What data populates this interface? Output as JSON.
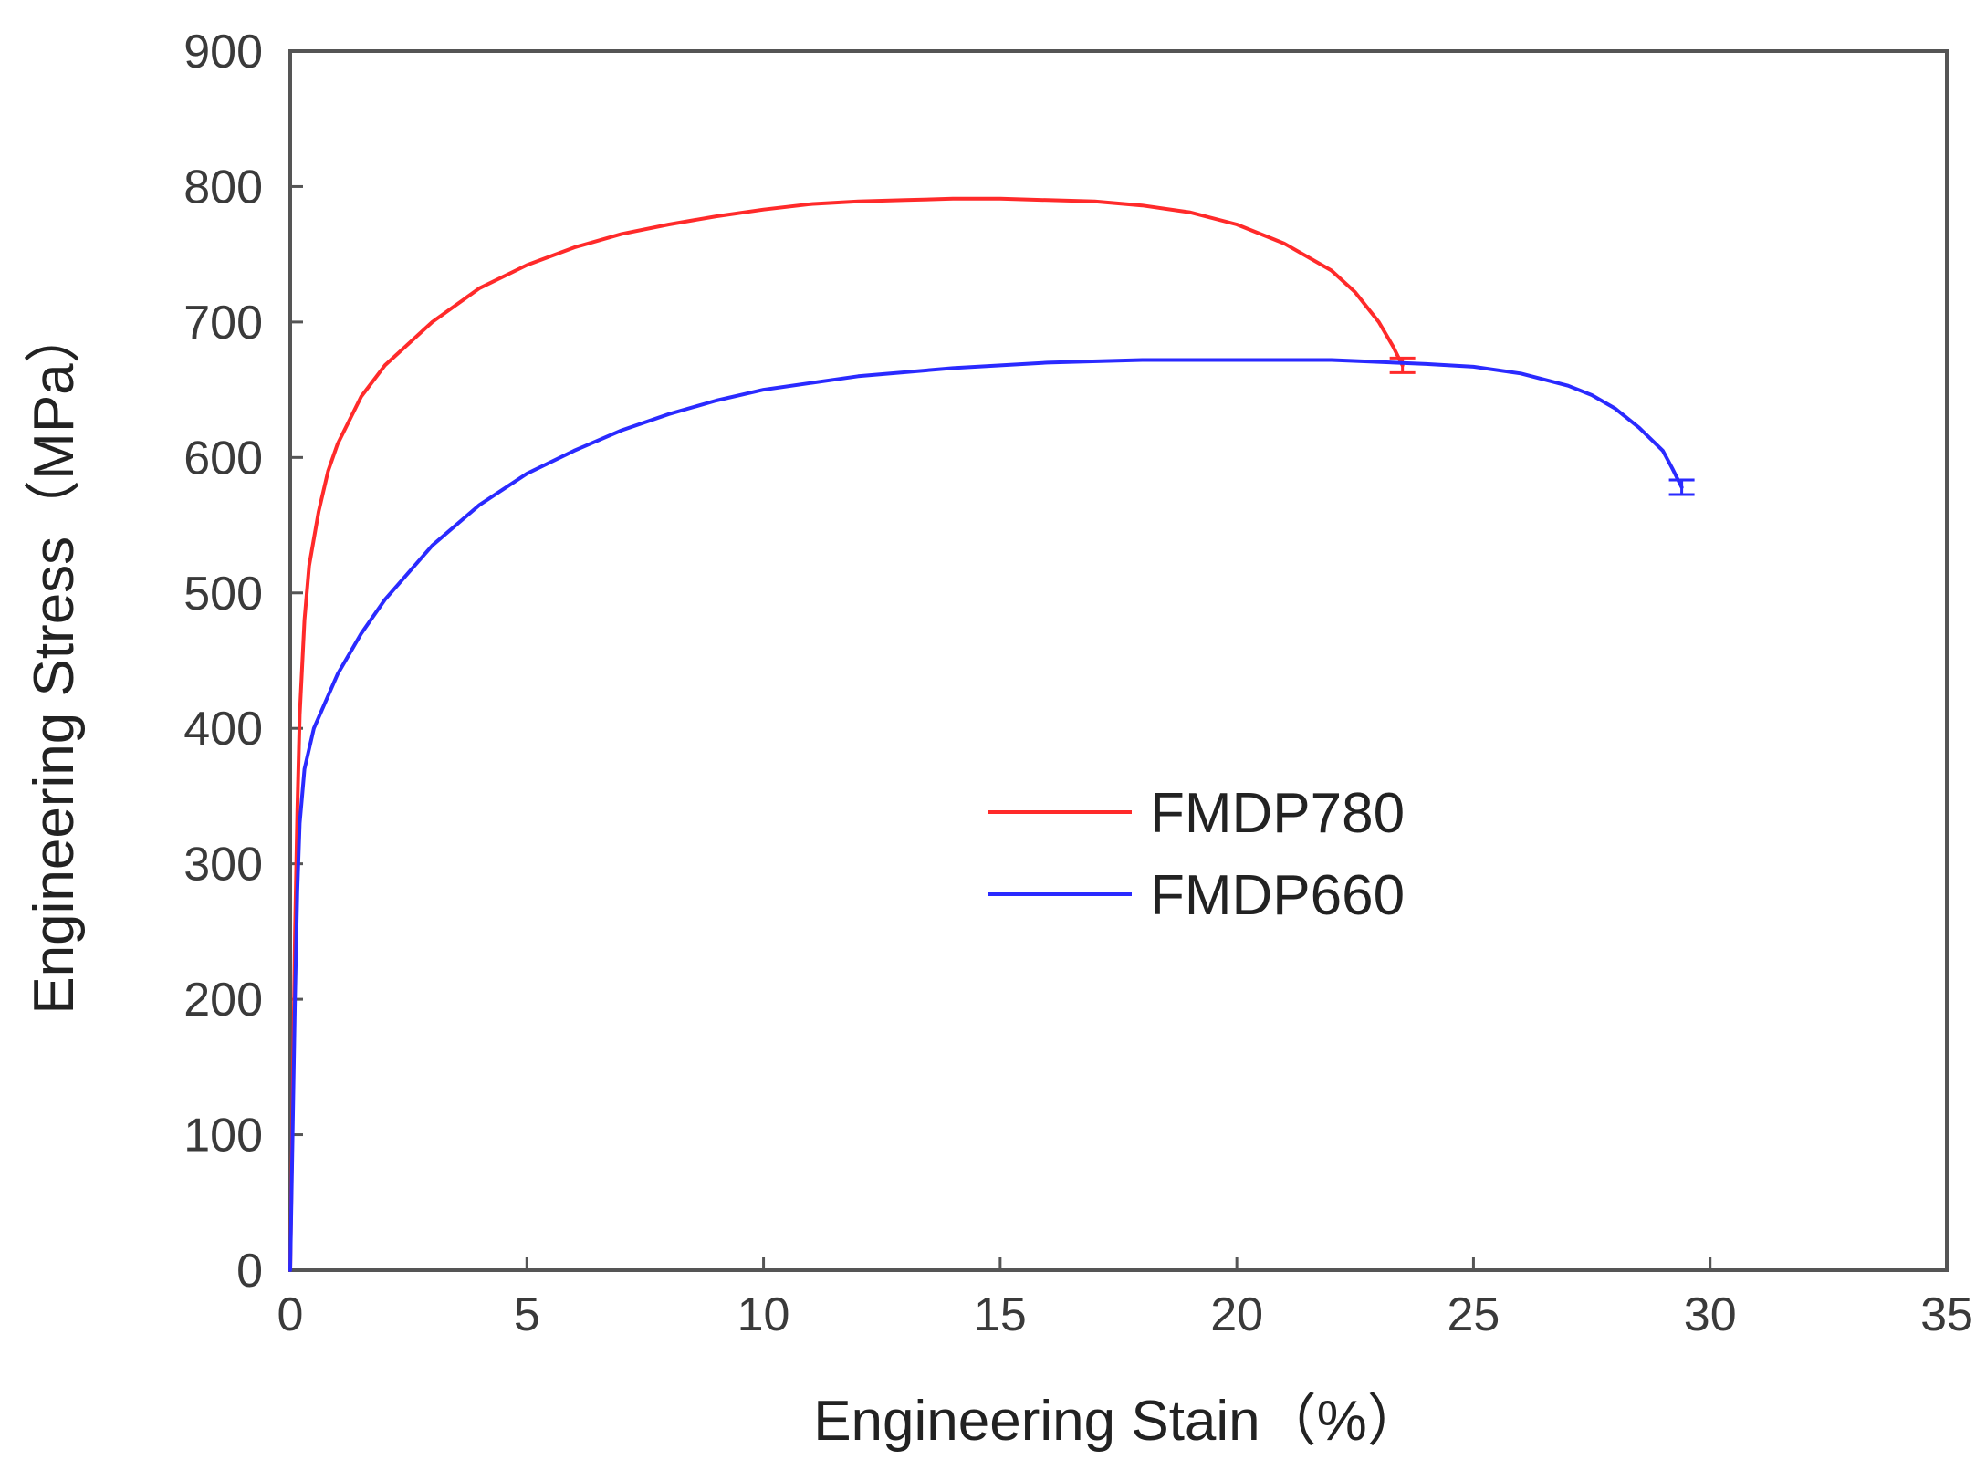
{
  "chart_data": {
    "type": "line",
    "title": "",
    "xlabel": "Engineering Stain（%）",
    "ylabel": "Engineering Stress（MPa）",
    "xlim": [
      0,
      35
    ],
    "ylim": [
      0,
      900
    ],
    "x_ticks": [
      "0",
      "5",
      "10",
      "15",
      "20",
      "25",
      "30",
      "35"
    ],
    "y_ticks": [
      "0",
      "100",
      "200",
      "300",
      "400",
      "500",
      "600",
      "700",
      "800",
      "900"
    ],
    "grid": false,
    "legend_position": "center-right",
    "series": [
      {
        "name": "FMDP780",
        "color": "#ff2a2a",
        "x": [
          0,
          0.05,
          0.1,
          0.15,
          0.2,
          0.3,
          0.4,
          0.6,
          0.8,
          1.0,
          1.5,
          2.0,
          3.0,
          4.0,
          5.0,
          6.0,
          7.0,
          8.0,
          9.0,
          10.0,
          11.0,
          12.0,
          13.0,
          14.0,
          15.0,
          16.0,
          17.0,
          18.0,
          19.0,
          20.0,
          21.0,
          22.0,
          22.5,
          23.0,
          23.3,
          23.5
        ],
        "y": [
          0,
          120,
          250,
          340,
          410,
          480,
          520,
          560,
          590,
          610,
          645,
          668,
          700,
          725,
          742,
          755,
          765,
          772,
          778,
          783,
          787,
          789,
          790,
          791,
          791,
          790,
          789,
          786,
          781,
          772,
          758,
          738,
          722,
          700,
          682,
          668
        ]
      },
      {
        "name": "FMDP660",
        "color": "#2a2aff",
        "x": [
          0,
          0.05,
          0.1,
          0.15,
          0.2,
          0.3,
          0.5,
          1.0,
          1.5,
          2.0,
          3.0,
          4.0,
          5.0,
          6.0,
          7.0,
          8.0,
          9.0,
          10.0,
          11.0,
          12.0,
          14.0,
          16.0,
          18.0,
          20.0,
          22.0,
          24.0,
          25.0,
          26.0,
          27.0,
          27.5,
          28.0,
          28.5,
          29.0,
          29.2,
          29.4
        ],
        "y": [
          0,
          100,
          200,
          280,
          330,
          370,
          400,
          440,
          470,
          495,
          535,
          565,
          588,
          605,
          620,
          632,
          642,
          650,
          655,
          660,
          666,
          670,
          672,
          672,
          672,
          669,
          667,
          662,
          653,
          646,
          636,
          622,
          605,
          592,
          578
        ]
      }
    ]
  }
}
